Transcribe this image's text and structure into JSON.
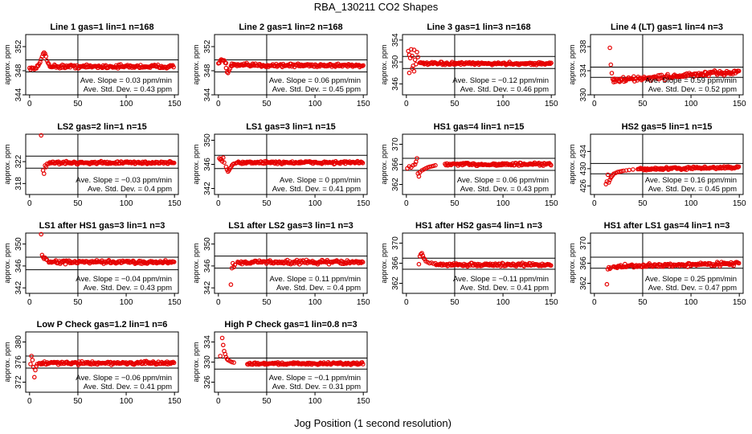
{
  "title": "RBA_130211  CO2 Shapes",
  "xlabel": "Jog Position (1 second resolution)",
  "ylabel_panels": "approx. ppm",
  "colors": {
    "points": "#e60000",
    "lines": "#000000"
  },
  "chart_data": [
    {
      "type": "scatter",
      "title": "Line 1 gas=1 lin=1 n=168",
      "xlim": [
        0,
        150
      ],
      "ylim": [
        344,
        354
      ],
      "yticks": [
        344,
        348,
        352
      ],
      "xticks": [
        0,
        50,
        100,
        150
      ],
      "xref": 50,
      "ref_lines": [
        349.8,
        347.8
      ],
      "base": 348.7,
      "noise": 0.25,
      "x_start": 0,
      "x_end": 150,
      "slope_text": "Ave. Slope = 0.03 ppm/min",
      "std_text": "Ave. Std. Dev. = 0.43 ppm",
      "features": [
        {
          "x": [
            0,
            7
          ],
          "y0": 348.4
        },
        {
          "x": [
            8,
            24
          ],
          "peak": {
            "x": 15,
            "y": 351.0
          }
        }
      ]
    },
    {
      "type": "scatter",
      "title": "Line 2 gas=1 lin=2 n=168",
      "xlim": [
        0,
        150
      ],
      "ylim": [
        344,
        354
      ],
      "yticks": [
        344,
        348,
        352
      ],
      "xticks": [
        0,
        50,
        100,
        150
      ],
      "xref": 50,
      "ref_lines": [
        349.8,
        347.8
      ],
      "base": 348.9,
      "noise": 0.25,
      "x_start": 0,
      "x_end": 150,
      "slope_text": "Ave. Slope = 0.06 ppm/min",
      "std_text": "Ave. Std. Dev. = 0.45 ppm",
      "features": [
        {
          "x": [
            0,
            8
          ],
          "peak": {
            "x": 4,
            "y": 349.9
          }
        },
        {
          "x": [
            8,
            14
          ],
          "dip": {
            "x": 10,
            "y": 347.6
          }
        }
      ]
    },
    {
      "type": "scatter",
      "title": "Line 3 gas=1 lin=3 n=168",
      "xlim": [
        0,
        150
      ],
      "ylim": [
        344,
        355
      ],
      "yticks": [
        346,
        350,
        354
      ],
      "xticks": [
        0,
        50,
        100,
        150
      ],
      "xref": 50,
      "ref_lines": [
        351.0,
        348.8
      ],
      "base": 349.7,
      "noise": 0.2,
      "x_start": 0,
      "x_end": 150,
      "slope_text": "Ave. Slope = −0.12 ppm/min",
      "std_text": "Ave. Std. Dev. = 0.46 ppm",
      "features": [
        {
          "x": [
            0,
            14
          ],
          "scatter": [
            [
              2,
              352.0
            ],
            [
              3,
              351.3
            ],
            [
              4,
              350.7
            ],
            [
              5,
              352.3
            ],
            [
              6,
              351.1
            ],
            [
              7,
              349.3
            ],
            [
              8,
              352.2
            ],
            [
              9,
              350.4
            ],
            [
              10,
              349.6
            ],
            [
              11,
              351.8
            ],
            [
              12,
              350.9
            ],
            [
              3,
              348.0
            ],
            [
              6,
              348.8
            ],
            [
              8,
              348.3
            ]
          ]
        }
      ]
    },
    {
      "type": "scatter",
      "title": "Line 4 (LT) gas=1 lin=4 n=3",
      "xlim": [
        0,
        150
      ],
      "ylim": [
        330,
        340
      ],
      "yticks": [
        330,
        334,
        338
      ],
      "xticks": [
        0,
        50,
        100,
        150
      ],
      "xref": 50,
      "ref_lines": [
        334.6,
        332.9
      ],
      "base": 333.0,
      "trend": 0.011,
      "noise": 0.35,
      "x_start": 16,
      "x_end": 150,
      "slope_text": "Ave. Slope = 0.59 ppm/min",
      "std_text": "Ave. Std. Dev. = 0.52 ppm",
      "features": [
        {
          "x": [
            16,
            20
          ],
          "scatter": [
            [
              16,
              337.8
            ],
            [
              17,
              335.0
            ],
            [
              18,
              333.6
            ],
            [
              19,
              332.6
            ],
            [
              20,
              332.1
            ]
          ]
        }
      ]
    },
    {
      "type": "scatter",
      "title": "LS2 gas=2 lin=1 n=15",
      "xlim": [
        0,
        150
      ],
      "ylim": [
        316,
        327
      ],
      "yticks": [
        318,
        322
      ],
      "xticks": [
        0,
        50,
        100,
        150
      ],
      "xref": 50,
      "ref_lines": [
        323.0,
        320.8
      ],
      "base": 321.8,
      "noise": 0.2,
      "x_start": 14,
      "x_end": 150,
      "slope_text": "Ave. Slope = −0.03 ppm/min",
      "std_text": "Ave. Std. Dev. = 0.4 ppm",
      "features": [
        {
          "x": [
            12,
            20
          ],
          "scatter": [
            [
              12,
              326.8
            ],
            [
              14,
              320.4
            ],
            [
              15,
              319.8
            ],
            [
              16,
              321.3
            ],
            [
              17,
              321.0
            ],
            [
              18,
              321.6
            ]
          ]
        }
      ]
    },
    {
      "type": "scatter",
      "title": "LS1 gas=3 lin=1 n=15",
      "xlim": [
        0,
        150
      ],
      "ylim": [
        341,
        351
      ],
      "yticks": [
        342,
        346,
        350
      ],
      "xticks": [
        0,
        50,
        100,
        150
      ],
      "xref": 50,
      "ref_lines": [
        347.5,
        345.3
      ],
      "base": 346.3,
      "noise": 0.2,
      "x_start": 0,
      "x_end": 150,
      "slope_text": "Ave. Slope = 0 ppm/min",
      "std_text": "Ave. Std. Dev. = 0.41 ppm",
      "features": [
        {
          "x": [
            0,
            18
          ],
          "scatter": [
            [
              1,
              347.0
            ],
            [
              2,
              346.8
            ],
            [
              3,
              346.9
            ],
            [
              4,
              346.5
            ],
            [
              5,
              347.1
            ],
            [
              6,
              346.3
            ],
            [
              8,
              345.6
            ],
            [
              9,
              345.1
            ],
            [
              10,
              344.8
            ],
            [
              11,
              345.0
            ],
            [
              12,
              345.3
            ],
            [
              13,
              345.5
            ],
            [
              14,
              345.8
            ],
            [
              15,
              346.0
            ],
            [
              16,
              346.1
            ]
          ]
        }
      ]
    },
    {
      "type": "scatter",
      "title": "HS1 gas=4 lin=1 n=15",
      "xlim": [
        0,
        150
      ],
      "ylim": [
        360,
        372
      ],
      "yticks": [
        362,
        366,
        370
      ],
      "xticks": [
        0,
        50,
        100,
        150
      ],
      "xref": 50,
      "ref_lines": [
        367.2,
        364.8
      ],
      "base": 366.0,
      "noise": 0.25,
      "x_start": 0,
      "x_end": 150,
      "slope_text": "Ave. Slope = 0.06 ppm/min",
      "std_text": "Ave. Std. Dev. = 0.43 ppm",
      "features": [
        {
          "x": [
            0,
            40
          ],
          "scatter": [
            [
              1,
              365.2
            ],
            [
              3,
              365.6
            ],
            [
              5,
              365.4
            ],
            [
              7,
              365.8
            ],
            [
              9,
              366.0
            ],
            [
              10,
              366.5
            ],
            [
              11,
              367.2
            ],
            [
              12,
              364.2
            ],
            [
              13,
              363.6
            ],
            [
              14,
              364.4
            ],
            [
              16,
              364.8
            ],
            [
              18,
              365.0
            ],
            [
              20,
              365.2
            ],
            [
              22,
              365.4
            ],
            [
              24,
              365.5
            ],
            [
              26,
              365.6
            ],
            [
              28,
              365.7
            ],
            [
              30,
              365.8
            ]
          ]
        }
      ]
    },
    {
      "type": "scatter",
      "title": "HS2 gas=5 lin=1 n=15",
      "xlim": [
        0,
        150
      ],
      "ylim": [
        424,
        438
      ],
      "yticks": [
        426,
        430,
        434
      ],
      "xticks": [
        0,
        50,
        100,
        150
      ],
      "xref": 50,
      "ref_lines": [
        431.2,
        428.8
      ],
      "base": 430.0,
      "trend": 0.004,
      "noise": 0.25,
      "x_start": 12,
      "x_end": 150,
      "slope_text": "Ave. Slope = 0.16 ppm/min",
      "std_text": "Ave. Std. Dev. = 0.45 ppm",
      "features": [
        {
          "x": [
            12,
            45
          ],
          "scatter": [
            [
              12,
              426.4
            ],
            [
              13,
              427.0
            ],
            [
              14,
              428.6
            ],
            [
              15,
              426.8
            ],
            [
              16,
              427.4
            ],
            [
              17,
              427.9
            ],
            [
              18,
              428.2
            ],
            [
              19,
              428.5
            ],
            [
              20,
              428.8
            ],
            [
              22,
              429.0
            ],
            [
              24,
              429.2
            ],
            [
              26,
              429.3
            ],
            [
              28,
              429.4
            ],
            [
              30,
              429.5
            ],
            [
              33,
              429.6
            ],
            [
              36,
              429.7
            ],
            [
              40,
              429.8
            ]
          ]
        }
      ]
    },
    {
      "type": "scatter",
      "title": "LS1 after HS1 gas=3 lin=1 n=3",
      "xlim": [
        0,
        150
      ],
      "ylim": [
        341,
        352
      ],
      "yticks": [
        342,
        346,
        350
      ],
      "xticks": [
        0,
        50,
        100,
        150
      ],
      "xref": 50,
      "ref_lines": [
        347.6,
        345.3
      ],
      "base": 346.7,
      "noise": 0.25,
      "x_start": 14,
      "x_end": 150,
      "slope_text": "Ave. Slope = −0.04 ppm/min",
      "std_text": "Ave. Std. Dev. = 0.43 ppm",
      "features": [
        {
          "x": [
            12,
            20
          ],
          "scatter": [
            [
              12,
              351.8
            ],
            [
              13,
              348.0
            ],
            [
              14,
              347.6
            ],
            [
              15,
              347.3
            ],
            [
              16,
              347.5
            ],
            [
              17,
              347.2
            ],
            [
              18,
              347.1
            ]
          ]
        }
      ]
    },
    {
      "type": "scatter",
      "title": "LS1 after LS2 gas=3 lin=1 n=3",
      "xlim": [
        0,
        150
      ],
      "ylim": [
        341,
        352
      ],
      "yticks": [
        342,
        346,
        350
      ],
      "xticks": [
        0,
        50,
        100,
        150
      ],
      "xref": 50,
      "ref_lines": [
        347.8,
        345.6
      ],
      "base": 346.7,
      "noise": 0.3,
      "x_start": 14,
      "x_end": 150,
      "slope_text": "Ave. Slope = 0.11 ppm/min",
      "std_text": "Ave. Std. Dev. = 0.4 ppm",
      "features": [
        {
          "x": [
            12,
            20
          ],
          "scatter": [
            [
              13,
              342.6
            ],
            [
              14,
              345.6
            ],
            [
              15,
              346.5
            ],
            [
              16,
              345.8
            ],
            [
              17,
              346.2
            ]
          ]
        }
      ]
    },
    {
      "type": "scatter",
      "title": "HS1 after HS2 gas=4 lin=1 n=3",
      "xlim": [
        0,
        150
      ],
      "ylim": [
        360,
        372
      ],
      "yticks": [
        362,
        366,
        370
      ],
      "xticks": [
        0,
        50,
        100,
        150
      ],
      "xref": 50,
      "ref_lines": [
        367.0,
        364.8
      ],
      "base": 365.7,
      "noise": 0.25,
      "x_start": 13,
      "x_end": 150,
      "slope_text": "Ave. Slope = −0.11 ppm/min",
      "std_text": "Ave. Std. Dev. = 0.41 ppm",
      "features": [
        {
          "x": [
            13,
            30
          ],
          "scatter": [
            [
              13,
              365.8
            ],
            [
              14,
              367.4
            ],
            [
              15,
              367.8
            ],
            [
              16,
              368.0
            ],
            [
              17,
              367.5
            ],
            [
              18,
              367.0
            ],
            [
              19,
              366.8
            ],
            [
              20,
              366.4
            ],
            [
              22,
              366.2
            ],
            [
              24,
              366.0
            ],
            [
              26,
              366.1
            ],
            [
              28,
              365.9
            ]
          ]
        }
      ]
    },
    {
      "type": "scatter",
      "title": "HS1 after LS1 gas=4 lin=1 n=3",
      "xlim": [
        0,
        150
      ],
      "ylim": [
        360,
        372
      ],
      "yticks": [
        362,
        366,
        370
      ],
      "xticks": [
        0,
        50,
        100,
        150
      ],
      "xref": 50,
      "ref_lines": [
        367.2,
        365.0
      ],
      "base": 365.6,
      "trend": 0.005,
      "noise": 0.3,
      "x_start": 13,
      "x_end": 150,
      "slope_text": "Ave. Slope = 0.25 ppm/min",
      "std_text": "Ave. Std. Dev. = 0.47 ppm",
      "features": [
        {
          "x": [
            13,
            20
          ],
          "scatter": [
            [
              13,
              361.8
            ],
            [
              14,
              364.8
            ],
            [
              15,
              365.2
            ],
            [
              16,
              364.9
            ],
            [
              17,
              365.1
            ]
          ]
        }
      ]
    },
    {
      "type": "scatter",
      "title": "Low P Check gas=1.2 lin=1 n=6",
      "xlim": [
        0,
        150
      ],
      "ylim": [
        370,
        382
      ],
      "yticks": [
        372,
        376,
        380
      ],
      "xticks": [
        0,
        50,
        100,
        150
      ],
      "xref": 50,
      "ref_lines": [
        377.2,
        374.8
      ],
      "base": 375.8,
      "noise": 0.25,
      "x_start": 0,
      "x_end": 150,
      "slope_text": "Ave. Slope = −0.06 ppm/min",
      "std_text": "Ave. Std. Dev. = 0.41 ppm",
      "features": [
        {
          "x": [
            0,
            10
          ],
          "scatter": [
            [
              1,
              375.6
            ],
            [
              2,
              377.2
            ],
            [
              3,
              376.4
            ],
            [
              4,
              375.0
            ],
            [
              5,
              373.0
            ],
            [
              6,
              374.4
            ],
            [
              7,
              375.2
            ],
            [
              8,
              375.6
            ]
          ]
        }
      ]
    },
    {
      "type": "scatter",
      "title": "High P Check gas=1 lin=0.8 n=3",
      "xlim": [
        0,
        150
      ],
      "ylim": [
        324,
        336
      ],
      "yticks": [
        326,
        330,
        334
      ],
      "xticks": [
        0,
        50,
        100,
        150
      ],
      "xref": 50,
      "ref_lines": [
        330.8,
        328.6
      ],
      "base": 329.7,
      "noise": 0.2,
      "x_start": 0,
      "x_end": 150,
      "slope_text": "Ave. Slope = −0.1 ppm/min",
      "std_text": "Ave. Std. Dev. = 0.31 ppm",
      "features": [
        {
          "x": [
            0,
            30
          ],
          "scatter": [
            [
              2,
              331.2
            ],
            [
              4,
              334.8
            ],
            [
              5,
              333.4
            ],
            [
              6,
              332.2
            ],
            [
              7,
              331.6
            ],
            [
              8,
              331.0
            ],
            [
              9,
              330.6
            ],
            [
              10,
              330.4
            ],
            [
              12,
              330.2
            ],
            [
              14,
              330.0
            ],
            [
              16,
              329.9
            ]
          ]
        }
      ]
    }
  ]
}
